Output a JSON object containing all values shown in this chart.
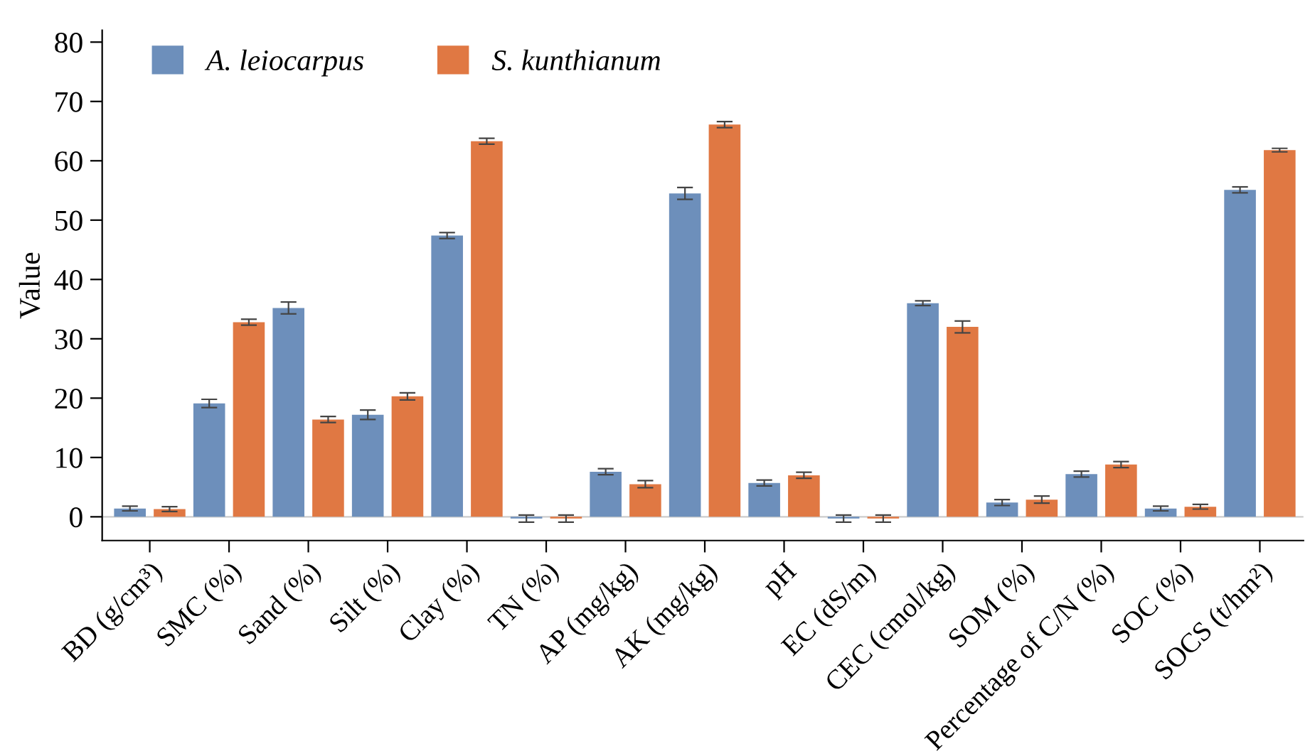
{
  "chart_data": {
    "type": "bar",
    "ylabel": "Value",
    "categories": [
      "BD (g/cm³)",
      "SMC (%)",
      "Sand (%)",
      "Silt (%)",
      "Clay (%)",
      "TN (%)",
      "AP (mg/kg)",
      "AK (mg/kg)",
      "pH",
      "EC (dS/m)",
      "CEC (cmol/kg)",
      "SOM (%)",
      "Percentage of C/N (%)",
      "SOC (%)",
      "SOCS (t/hm²)"
    ],
    "series": [
      {
        "name": "A. leiocarpus",
        "color": "#6d8fbb",
        "values": [
          1.4,
          19.1,
          35.2,
          17.2,
          47.4,
          -0.3,
          7.6,
          54.5,
          5.7,
          -0.3,
          36.0,
          2.4,
          7.2,
          1.4,
          55.1
        ],
        "errors": [
          0.4,
          0.7,
          1.0,
          0.8,
          0.5,
          0.6,
          0.5,
          1.0,
          0.5,
          0.6,
          0.4,
          0.5,
          0.5,
          0.4,
          0.5
        ]
      },
      {
        "name": "S. kunthianum",
        "color": "#e07843",
        "values": [
          1.3,
          32.8,
          16.4,
          20.3,
          63.3,
          -0.3,
          5.5,
          66.1,
          7.0,
          -0.3,
          32.0,
          2.9,
          8.8,
          1.7,
          61.8
        ],
        "errors": [
          0.4,
          0.5,
          0.5,
          0.6,
          0.5,
          0.6,
          0.6,
          0.5,
          0.5,
          0.6,
          1.0,
          0.6,
          0.5,
          0.4,
          0.3
        ]
      }
    ],
    "ylim": [
      -4,
      82
    ],
    "yticks": [
      0,
      10,
      20,
      30,
      40,
      50,
      60,
      70,
      80
    ],
    "ref_lines": [
      {
        "axis": "y",
        "value": 0,
        "color": "#cccccc"
      }
    ],
    "grid": false,
    "legend": "top left"
  }
}
